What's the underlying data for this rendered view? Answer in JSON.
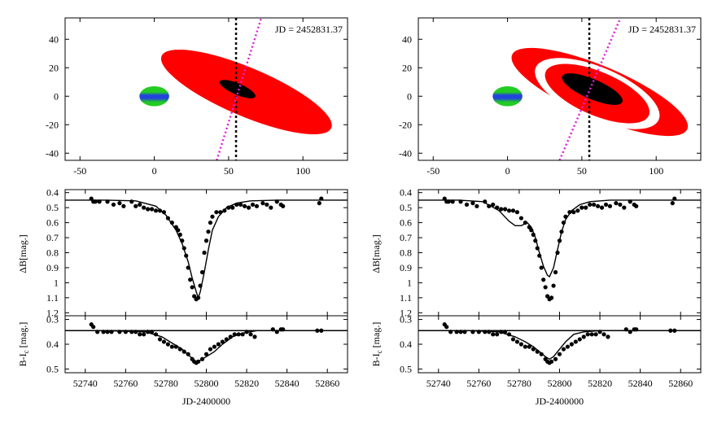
{
  "figure": {
    "jd_label": "JD = 2452831.37",
    "xlabel_bottom": "JD-2400000",
    "ylabel_mag": "ΔB[mag.]",
    "ylabel_color_main": "B-I",
    "ylabel_color_sub": "c",
    "ylabel_color_tail": " [mag.]"
  },
  "colors": {
    "disk": "#ff0000",
    "core": "#000000",
    "star_blue": "#2244dd",
    "star_green": "#22cc22",
    "line_of_sight": "#dd22dd",
    "gap": "#ffffff"
  },
  "chart_data": [
    {
      "type": "scatter",
      "id": "model-left",
      "content": "disk model geometry (single solid red disk with dark core)",
      "xlim": [
        -60,
        130
      ],
      "ylim": [
        -45,
        55
      ],
      "xticks": [
        -50,
        0,
        50,
        100
      ],
      "yticks": [
        -40,
        -20,
        0,
        20,
        40
      ],
      "star": {
        "x": 0,
        "y": 0,
        "rx": 10,
        "ry": 7
      },
      "disk": {
        "cx": 62,
        "cy": 3,
        "outer_a": 62,
        "outer_b": 17,
        "angle_deg": -23,
        "gap": false
      },
      "core": {
        "cx": 56,
        "cy": 5,
        "a": 13,
        "b": 4,
        "angle_deg": -23
      },
      "vertical_line_x": 55,
      "dotted_line": [
        [
          42,
          -45
        ],
        [
          72,
          55
        ]
      ]
    },
    {
      "type": "scatter",
      "id": "model-right",
      "content": "disk model geometry (red disk with white gap ring and dark core)",
      "xlim": [
        -60,
        130
      ],
      "ylim": [
        -45,
        55
      ],
      "xticks": [
        -50,
        0,
        50,
        100
      ],
      "yticks": [
        -40,
        -20,
        0,
        20,
        40
      ],
      "star": {
        "x": 0,
        "y": 0,
        "rx": 10,
        "ry": 7
      },
      "disk": {
        "cx": 62,
        "cy": 3,
        "outer_a": 64,
        "outer_b": 18,
        "angle_deg": -23,
        "gap": true,
        "gap_a": 29,
        "gap_b": 9
      },
      "core": {
        "cx": 57,
        "cy": 5,
        "a": 22,
        "b": 7,
        "angle_deg": -23
      },
      "vertical_line_x": 55,
      "dotted_line": [
        [
          35,
          -45
        ],
        [
          76,
          55
        ]
      ]
    },
    {
      "type": "scatter",
      "id": "lc-left",
      "xlim": [
        52730,
        52870
      ],
      "ylim": [
        1.22,
        0.38
      ],
      "xticks": [
        52740,
        52760,
        52780,
        52800,
        52820,
        52840,
        52860
      ],
      "yticks": [
        0.4,
        0.5,
        0.6,
        0.7,
        0.8,
        0.9,
        1,
        1.1,
        1.2
      ],
      "ylabel": "ΔB[mag.]",
      "points": [
        [
          52743,
          0.44
        ],
        [
          52744,
          0.46
        ],
        [
          52745,
          0.46
        ],
        [
          52747,
          0.46
        ],
        [
          52751,
          0.46
        ],
        [
          52754,
          0.48
        ],
        [
          52757,
          0.47
        ],
        [
          52759,
          0.49
        ],
        [
          52763,
          0.46
        ],
        [
          52765,
          0.49
        ],
        [
          52767,
          0.48
        ],
        [
          52769,
          0.5
        ],
        [
          52771,
          0.51
        ],
        [
          52773,
          0.51
        ],
        [
          52775,
          0.52
        ],
        [
          52777,
          0.52
        ],
        [
          52779,
          0.53
        ],
        [
          52781,
          0.57
        ],
        [
          52783,
          0.6
        ],
        [
          52785,
          0.63
        ],
        [
          52786,
          0.65
        ],
        [
          52787,
          0.68
        ],
        [
          52788,
          0.72
        ],
        [
          52789,
          0.77
        ],
        [
          52790,
          0.82
        ],
        [
          52791,
          0.9
        ],
        [
          52792,
          0.98
        ],
        [
          52793,
          1.03
        ],
        [
          52794,
          1.09
        ],
        [
          52795,
          1.11
        ],
        [
          52796,
          1.1
        ],
        [
          52797,
          1.02
        ],
        [
          52798,
          0.93
        ],
        [
          52799,
          0.8
        ],
        [
          52800,
          0.72
        ],
        [
          52801,
          0.66
        ],
        [
          52802,
          0.6
        ],
        [
          52803,
          0.56
        ],
        [
          52805,
          0.53
        ],
        [
          52807,
          0.53
        ],
        [
          52809,
          0.52
        ],
        [
          52811,
          0.5
        ],
        [
          52813,
          0.5
        ],
        [
          52815,
          0.48
        ],
        [
          52817,
          0.48
        ],
        [
          52819,
          0.49
        ],
        [
          52821,
          0.5
        ],
        [
          52823,
          0.48
        ],
        [
          52825,
          0.49
        ],
        [
          52828,
          0.47
        ],
        [
          52830,
          0.48
        ],
        [
          52832,
          0.5
        ],
        [
          52835,
          0.46
        ],
        [
          52837,
          0.48
        ],
        [
          52838,
          0.49
        ],
        [
          52856,
          0.47
        ],
        [
          52857,
          0.44
        ]
      ],
      "model": [
        [
          52730,
          0.45
        ],
        [
          52750,
          0.45
        ],
        [
          52765,
          0.455
        ],
        [
          52775,
          0.49
        ],
        [
          52780,
          0.55
        ],
        [
          52785,
          0.65
        ],
        [
          52788,
          0.74
        ],
        [
          52791,
          0.86
        ],
        [
          52793,
          0.97
        ],
        [
          52795,
          1.06
        ],
        [
          52796,
          1.1
        ],
        [
          52797,
          1.06
        ],
        [
          52799,
          0.93
        ],
        [
          52801,
          0.78
        ],
        [
          52803,
          0.65
        ],
        [
          52806,
          0.56
        ],
        [
          52810,
          0.5
        ],
        [
          52815,
          0.47
        ],
        [
          52822,
          0.455
        ],
        [
          52835,
          0.45
        ],
        [
          52870,
          0.45
        ]
      ]
    },
    {
      "type": "scatter",
      "id": "lc-right",
      "xlim": [
        52730,
        52870
      ],
      "ylim": [
        1.22,
        0.38
      ],
      "xticks": [
        52740,
        52760,
        52780,
        52800,
        52820,
        52840,
        52860
      ],
      "yticks": [
        0.4,
        0.5,
        0.6,
        0.7,
        0.8,
        0.9,
        1,
        1.1,
        1.2
      ],
      "ylabel": "ΔB[mag.]",
      "points": [
        [
          52743,
          0.44
        ],
        [
          52744,
          0.46
        ],
        [
          52745,
          0.46
        ],
        [
          52747,
          0.46
        ],
        [
          52751,
          0.46
        ],
        [
          52754,
          0.48
        ],
        [
          52757,
          0.47
        ],
        [
          52759,
          0.49
        ],
        [
          52763,
          0.46
        ],
        [
          52765,
          0.49
        ],
        [
          52767,
          0.48
        ],
        [
          52769,
          0.5
        ],
        [
          52771,
          0.51
        ],
        [
          52773,
          0.51
        ],
        [
          52775,
          0.52
        ],
        [
          52777,
          0.52
        ],
        [
          52779,
          0.53
        ],
        [
          52781,
          0.57
        ],
        [
          52783,
          0.6
        ],
        [
          52785,
          0.63
        ],
        [
          52786,
          0.65
        ],
        [
          52787,
          0.68
        ],
        [
          52788,
          0.72
        ],
        [
          52789,
          0.77
        ],
        [
          52790,
          0.82
        ],
        [
          52791,
          0.9
        ],
        [
          52792,
          0.98
        ],
        [
          52793,
          1.03
        ],
        [
          52794,
          1.09
        ],
        [
          52795,
          1.11
        ],
        [
          52796,
          1.1
        ],
        [
          52797,
          1.02
        ],
        [
          52798,
          0.93
        ],
        [
          52799,
          0.8
        ],
        [
          52800,
          0.72
        ],
        [
          52801,
          0.66
        ],
        [
          52802,
          0.6
        ],
        [
          52803,
          0.56
        ],
        [
          52805,
          0.53
        ],
        [
          52807,
          0.53
        ],
        [
          52809,
          0.52
        ],
        [
          52811,
          0.5
        ],
        [
          52813,
          0.5
        ],
        [
          52815,
          0.48
        ],
        [
          52817,
          0.48
        ],
        [
          52819,
          0.49
        ],
        [
          52821,
          0.5
        ],
        [
          52823,
          0.48
        ],
        [
          52825,
          0.49
        ],
        [
          52828,
          0.47
        ],
        [
          52830,
          0.48
        ],
        [
          52832,
          0.5
        ],
        [
          52835,
          0.46
        ],
        [
          52837,
          0.48
        ],
        [
          52838,
          0.49
        ],
        [
          52856,
          0.47
        ],
        [
          52857,
          0.44
        ]
      ],
      "model": [
        [
          52730,
          0.45
        ],
        [
          52750,
          0.45
        ],
        [
          52762,
          0.46
        ],
        [
          52770,
          0.52
        ],
        [
          52775,
          0.59
        ],
        [
          52778,
          0.62
        ],
        [
          52781,
          0.62
        ],
        [
          52784,
          0.6
        ],
        [
          52786,
          0.63
        ],
        [
          52788,
          0.7
        ],
        [
          52790,
          0.8
        ],
        [
          52792,
          0.89
        ],
        [
          52794,
          0.95
        ],
        [
          52795,
          0.96
        ],
        [
          52797,
          0.9
        ],
        [
          52799,
          0.78
        ],
        [
          52801,
          0.66
        ],
        [
          52803,
          0.58
        ],
        [
          52806,
          0.52
        ],
        [
          52810,
          0.48
        ],
        [
          52815,
          0.46
        ],
        [
          52825,
          0.45
        ],
        [
          52870,
          0.45
        ]
      ]
    },
    {
      "type": "scatter",
      "id": "color-left",
      "xlim": [
        52730,
        52870
      ],
      "ylim": [
        0.515,
        0.285
      ],
      "xticks": [
        52740,
        52760,
        52780,
        52800,
        52820,
        52840,
        52860
      ],
      "xticklabels": [
        "52740",
        "52760",
        "52780",
        "52800",
        "52820",
        "52840",
        "52860"
      ],
      "yticks": [
        0.3,
        0.4,
        0.5
      ],
      "xlabel": "JD-2400000",
      "baseline": 0.345,
      "points": [
        [
          52743,
          0.32
        ],
        [
          52744,
          0.33
        ],
        [
          52746,
          0.35
        ],
        [
          52749,
          0.35
        ],
        [
          52751,
          0.35
        ],
        [
          52753,
          0.35
        ],
        [
          52757,
          0.35
        ],
        [
          52760,
          0.35
        ],
        [
          52763,
          0.35
        ],
        [
          52765,
          0.35
        ],
        [
          52767,
          0.36
        ],
        [
          52769,
          0.36
        ],
        [
          52771,
          0.35
        ],
        [
          52773,
          0.35
        ],
        [
          52775,
          0.36
        ],
        [
          52777,
          0.38
        ],
        [
          52779,
          0.39
        ],
        [
          52781,
          0.4
        ],
        [
          52783,
          0.41
        ],
        [
          52785,
          0.41
        ],
        [
          52787,
          0.42
        ],
        [
          52789,
          0.43
        ],
        [
          52791,
          0.44
        ],
        [
          52793,
          0.46
        ],
        [
          52794,
          0.47
        ],
        [
          52795,
          0.475
        ],
        [
          52796,
          0.47
        ],
        [
          52798,
          0.46
        ],
        [
          52800,
          0.44
        ],
        [
          52802,
          0.42
        ],
        [
          52804,
          0.41
        ],
        [
          52806,
          0.4
        ],
        [
          52808,
          0.39
        ],
        [
          52810,
          0.38
        ],
        [
          52812,
          0.37
        ],
        [
          52814,
          0.36
        ],
        [
          52816,
          0.36
        ],
        [
          52818,
          0.36
        ],
        [
          52820,
          0.35
        ],
        [
          52822,
          0.36
        ],
        [
          52824,
          0.37
        ],
        [
          52833,
          0.34
        ],
        [
          52835,
          0.35
        ],
        [
          52837,
          0.34
        ],
        [
          52838,
          0.34
        ],
        [
          52855,
          0.345
        ],
        [
          52857,
          0.345
        ]
      ],
      "model": [
        [
          52730,
          0.345
        ],
        [
          52750,
          0.345
        ],
        [
          52770,
          0.35
        ],
        [
          52778,
          0.37
        ],
        [
          52784,
          0.4
        ],
        [
          52788,
          0.42
        ],
        [
          52792,
          0.45
        ],
        [
          52795,
          0.47
        ],
        [
          52797,
          0.465
        ],
        [
          52800,
          0.45
        ],
        [
          52804,
          0.43
        ],
        [
          52808,
          0.4
        ],
        [
          52813,
          0.37
        ],
        [
          52818,
          0.355
        ],
        [
          52825,
          0.345
        ],
        [
          52870,
          0.345
        ]
      ]
    },
    {
      "type": "scatter",
      "id": "color-right",
      "xlim": [
        52730,
        52870
      ],
      "ylim": [
        0.515,
        0.285
      ],
      "xticks": [
        52740,
        52760,
        52780,
        52800,
        52820,
        52840,
        52860
      ],
      "xticklabels": [
        "52740",
        "52760",
        "52780",
        "52800",
        "52820",
        "52840",
        "52860"
      ],
      "yticks": [
        0.3,
        0.4,
        0.5
      ],
      "xlabel": "JD-2400000",
      "baseline": 0.345,
      "points": [
        [
          52743,
          0.32
        ],
        [
          52744,
          0.33
        ],
        [
          52746,
          0.35
        ],
        [
          52749,
          0.35
        ],
        [
          52751,
          0.35
        ],
        [
          52753,
          0.35
        ],
        [
          52757,
          0.35
        ],
        [
          52760,
          0.35
        ],
        [
          52763,
          0.35
        ],
        [
          52765,
          0.35
        ],
        [
          52767,
          0.36
        ],
        [
          52769,
          0.36
        ],
        [
          52771,
          0.35
        ],
        [
          52773,
          0.35
        ],
        [
          52775,
          0.36
        ],
        [
          52777,
          0.38
        ],
        [
          52779,
          0.39
        ],
        [
          52781,
          0.4
        ],
        [
          52783,
          0.41
        ],
        [
          52785,
          0.41
        ],
        [
          52787,
          0.42
        ],
        [
          52789,
          0.43
        ],
        [
          52791,
          0.44
        ],
        [
          52793,
          0.46
        ],
        [
          52794,
          0.47
        ],
        [
          52795,
          0.475
        ],
        [
          52796,
          0.47
        ],
        [
          52798,
          0.46
        ],
        [
          52800,
          0.44
        ],
        [
          52802,
          0.42
        ],
        [
          52804,
          0.41
        ],
        [
          52806,
          0.4
        ],
        [
          52808,
          0.39
        ],
        [
          52810,
          0.38
        ],
        [
          52812,
          0.37
        ],
        [
          52814,
          0.36
        ],
        [
          52816,
          0.36
        ],
        [
          52818,
          0.36
        ],
        [
          52820,
          0.35
        ],
        [
          52822,
          0.36
        ],
        [
          52824,
          0.37
        ],
        [
          52833,
          0.34
        ],
        [
          52835,
          0.35
        ],
        [
          52837,
          0.34
        ],
        [
          52838,
          0.34
        ],
        [
          52855,
          0.345
        ],
        [
          52857,
          0.345
        ]
      ],
      "model": [
        [
          52730,
          0.345
        ],
        [
          52755,
          0.345
        ],
        [
          52770,
          0.35
        ],
        [
          52778,
          0.37
        ],
        [
          52783,
          0.39
        ],
        [
          52787,
          0.41
        ],
        [
          52790,
          0.43
        ],
        [
          52793,
          0.45
        ],
        [
          52795,
          0.46
        ],
        [
          52797,
          0.45
        ],
        [
          52800,
          0.42
        ],
        [
          52803,
          0.39
        ],
        [
          52807,
          0.36
        ],
        [
          52812,
          0.35
        ],
        [
          52820,
          0.345
        ],
        [
          52870,
          0.345
        ]
      ]
    }
  ]
}
